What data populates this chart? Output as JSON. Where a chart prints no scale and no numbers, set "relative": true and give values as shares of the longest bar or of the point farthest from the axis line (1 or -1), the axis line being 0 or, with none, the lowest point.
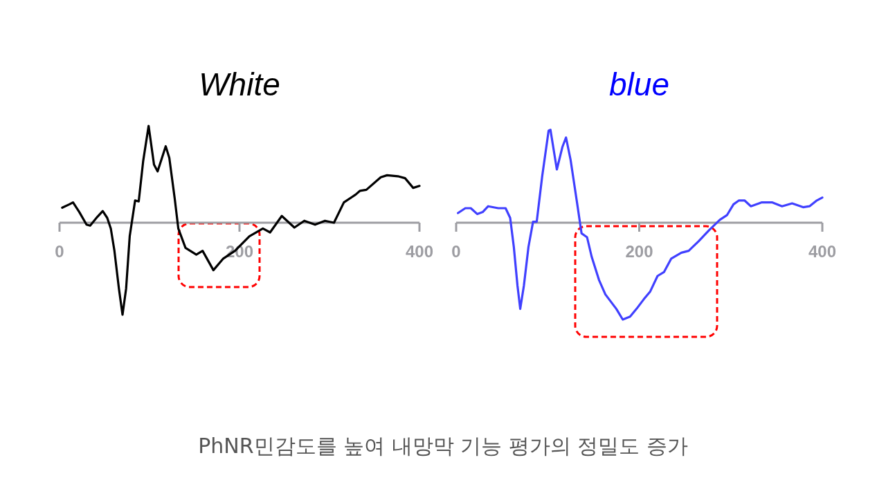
{
  "chart_data": [
    {
      "type": "line",
      "title": "White",
      "relative": true,
      "xlim": [
        0,
        400
      ],
      "xticks": [
        0,
        200,
        400
      ],
      "tick_labels": "x",
      "line_style": "solid",
      "series": [
        {
          "color": "#000000",
          "x": [
            3,
            11,
            15,
            22,
            30,
            34,
            42,
            48,
            53,
            57,
            61,
            66,
            70,
            74,
            78,
            84,
            88,
            93,
            99,
            105,
            109,
            118,
            122,
            128,
            132,
            140,
            152,
            159,
            171,
            182,
            195,
            211,
            226,
            234,
            247,
            261,
            272,
            284,
            295,
            305,
            316,
            329,
            334,
            341,
            357,
            364,
            376,
            384,
            393,
            400
          ],
          "values": [
            0.155,
            0.19,
            0.21,
            0.11,
            -0.02,
            -0.03,
            0.06,
            0.12,
            0.05,
            -0.06,
            -0.29,
            -0.68,
            -0.95,
            -0.68,
            -0.14,
            0.23,
            0.22,
            0.64,
            1.0,
            0.6,
            0.53,
            0.79,
            0.67,
            0.25,
            -0.06,
            -0.26,
            -0.33,
            -0.29,
            -0.49,
            -0.37,
            -0.29,
            -0.14,
            -0.06,
            -0.1,
            0.07,
            -0.05,
            0.02,
            -0.02,
            0.02,
            0.0,
            0.21,
            0.29,
            0.33,
            0.34,
            0.47,
            0.49,
            0.48,
            0.46,
            0.36,
            0.38
          ]
        }
      ]
    },
    {
      "type": "line",
      "title": "blue",
      "relative": true,
      "xlim": [
        0,
        400
      ],
      "xticks": [
        0,
        200,
        400
      ],
      "tick_labels": "x",
      "line_style": "solid",
      "series": [
        {
          "color": "#4040ff",
          "x": [
            2,
            10,
            16,
            23,
            29,
            35,
            46,
            54,
            59,
            63,
            67,
            70,
            74,
            79,
            84,
            88,
            94,
            101,
            103,
            110,
            116,
            120,
            125,
            132,
            137,
            143,
            148,
            156,
            163,
            175,
            182,
            190,
            197,
            205,
            212,
            220,
            227,
            235,
            246,
            254,
            265,
            277,
            288,
            296,
            303,
            309,
            315,
            322,
            334,
            345,
            356,
            367,
            379,
            386,
            394,
            400
          ],
          "values": [
            0.1,
            0.15,
            0.15,
            0.09,
            0.11,
            0.17,
            0.15,
            0.15,
            0.05,
            -0.25,
            -0.65,
            -0.89,
            -0.65,
            -0.25,
            0.01,
            0.01,
            0.48,
            0.95,
            0.96,
            0.55,
            0.78,
            0.88,
            0.65,
            0.21,
            -0.11,
            -0.15,
            -0.35,
            -0.59,
            -0.74,
            -0.89,
            -1.0,
            -0.97,
            -0.89,
            -0.79,
            -0.71,
            -0.55,
            -0.51,
            -0.37,
            -0.31,
            -0.29,
            -0.19,
            -0.07,
            0.03,
            0.08,
            0.19,
            0.23,
            0.23,
            0.17,
            0.21,
            0.21,
            0.17,
            0.2,
            0.16,
            0.17,
            0.23,
            0.26
          ]
        }
      ],
      "annotations": [
        "PhNR민감도를 높여 내망막 기능 평가의 정밀도 증가"
      ]
    }
  ]
}
